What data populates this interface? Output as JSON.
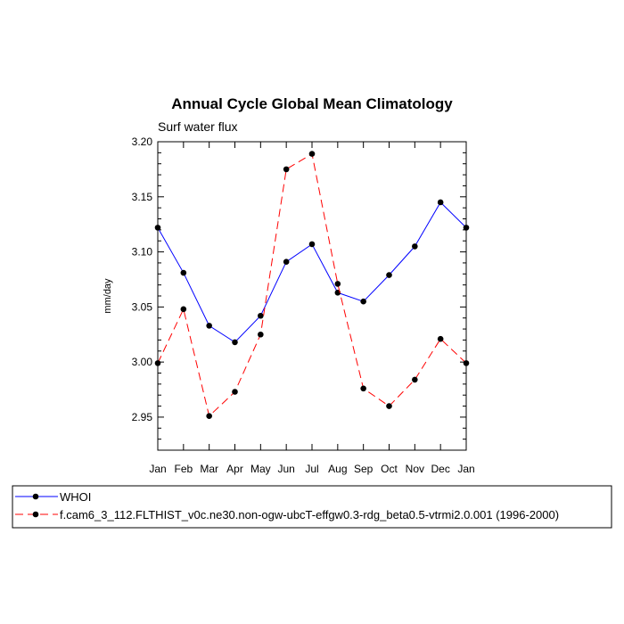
{
  "chart_data": {
    "type": "line",
    "title": "Annual Cycle Global Mean Climatology",
    "subtitle": "Surf water flux",
    "xlabel": "",
    "ylabel": "mm/day",
    "categories": [
      "Jan",
      "Feb",
      "Mar",
      "Apr",
      "May",
      "Jun",
      "Jul",
      "Aug",
      "Sep",
      "Oct",
      "Nov",
      "Dec",
      "Jan"
    ],
    "ylim": [
      2.92,
      3.2
    ],
    "yticks": [
      "2.95",
      "3.00",
      "3.05",
      "3.10",
      "3.15",
      "3.20"
    ],
    "grid": false,
    "legend_position": "bottom",
    "series": [
      {
        "name": "WHOI",
        "color": "#0000ff",
        "dash": "solid",
        "marker": "filled-circle",
        "values": [
          3.122,
          3.081,
          3.033,
          3.018,
          3.042,
          3.091,
          3.107,
          3.063,
          3.055,
          3.079,
          3.105,
          3.145,
          3.122
        ]
      },
      {
        "name": "f.cam6_3_112.FLTHIST_v0c.ne30.non-ogw-ubcT-effgw0.3-rdg_beta0.5-vtrmi2.0.001 (1996-2000)",
        "color": "#ff0000",
        "dash": "dashed",
        "marker": "filled-circle",
        "values": [
          2.999,
          3.048,
          2.951,
          2.973,
          3.025,
          3.175,
          3.189,
          3.071,
          2.976,
          2.96,
          2.984,
          3.021,
          2.999
        ]
      }
    ]
  }
}
